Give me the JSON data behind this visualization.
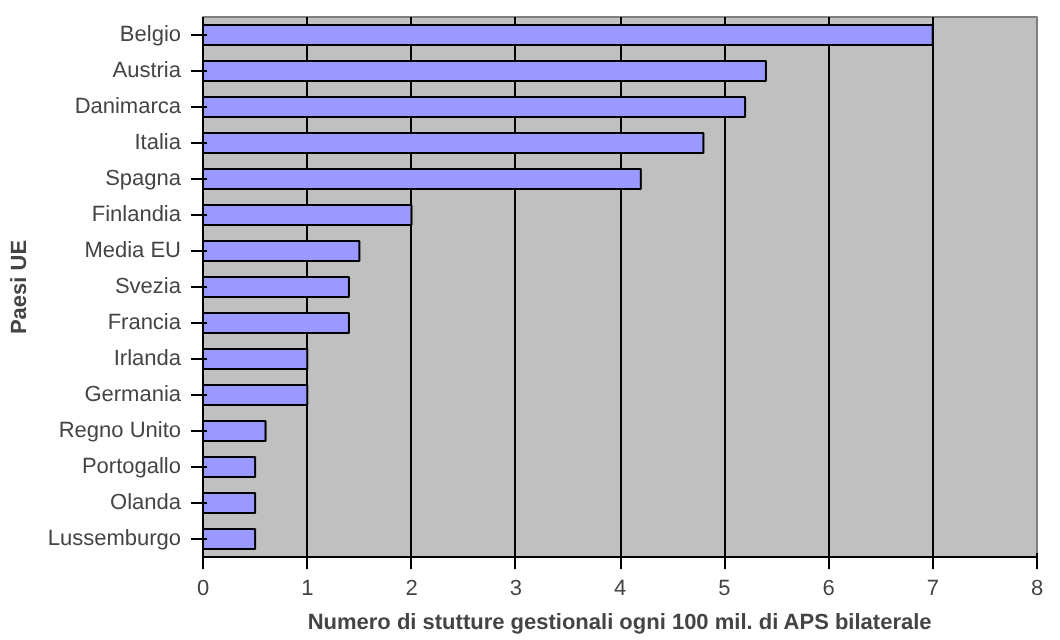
{
  "chart_data": {
    "type": "bar",
    "orientation": "horizontal",
    "xlabel": "Numero di stutture gestionali ogni 100 mil. di APS bilaterale",
    "ylabel": "Paesi UE",
    "categories": [
      "Belgio",
      "Austria",
      "Danimarca",
      "Italia",
      "Spagna",
      "Finlandia",
      "Media EU",
      "Svezia",
      "Francia",
      "Irlanda",
      "Germania",
      "Regno Unito",
      "Portogallo",
      "Olanda",
      "Lussemburgo"
    ],
    "values": [
      7,
      5.4,
      5.2,
      4.8,
      4.2,
      2,
      1.5,
      1.4,
      1.4,
      1,
      1,
      0.6,
      0.5,
      0.5,
      0.5
    ],
    "color": "#9999ff",
    "xlim": [
      0,
      8
    ],
    "xticks": [
      0,
      1,
      2,
      3,
      4,
      5,
      6,
      7,
      8
    ],
    "grid": "x"
  }
}
